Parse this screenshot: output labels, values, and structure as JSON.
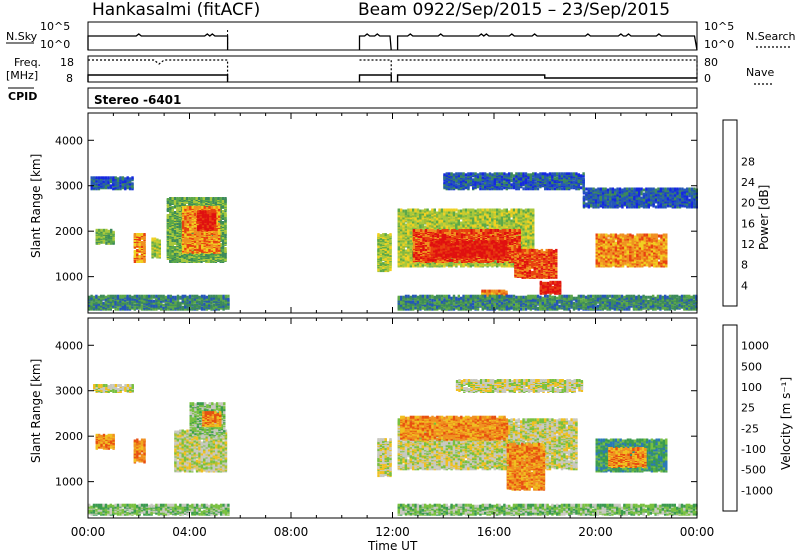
{
  "header": {
    "radar": "Hankasalmi (fitACF)",
    "beam": "Beam 09",
    "dates": "22/Sep/2015 – 23/Sep/2015"
  },
  "status": {
    "nsky_label": "N.Sky",
    "nsearch_label": "N.Search",
    "freq_label": "Freq.",
    "freq_unit": "[MHz]",
    "nave_label": "Nave",
    "cpid_label": "CPID",
    "cpid_value": "Stereo -6401",
    "left_top_tick": "10^5",
    "left_bottom_tick": "10^0",
    "right_top_tick": "10^5",
    "right_bottom_tick": "10^0",
    "freq_ticks": [
      "18",
      "8"
    ],
    "nave_ticks": [
      "80",
      "0"
    ],
    "data_gaps": [
      [
        5.5,
        10.7
      ],
      [
        11.95,
        12.2
      ]
    ],
    "freq_dip_hour": 2.8,
    "nave_step_hour": 18.0
  },
  "chart_data": [
    {
      "type": "heatmap",
      "panel": "power",
      "ylabel": "Slant Range [km]",
      "xlabel": "",
      "x_ticks": [
        "00:00",
        "04:00",
        "08:00",
        "12:00",
        "16:00",
        "20:00",
        "00:00"
      ],
      "x_range_hours": [
        0,
        24
      ],
      "y_ticks": [
        "1000",
        "2000",
        "3000",
        "4000"
      ],
      "y_range_km": [
        200,
        4600
      ],
      "colorbar": {
        "label": "Power [dB]",
        "ticks": [
          "4",
          "8",
          "12",
          "16",
          "20",
          "24",
          "28"
        ],
        "colors": [
          "#1528e0",
          "#2456b8",
          "#3c8a5a",
          "#5ca848",
          "#a8c83c",
          "#f0d020",
          "#f09020",
          "#e84010",
          "#e01010"
        ]
      },
      "regions": [
        {
          "t0": 0.1,
          "t1": 1.8,
          "r0": 2900,
          "r1": 3150,
          "level": 1
        },
        {
          "t0": 0.3,
          "t1": 1.0,
          "r0": 1700,
          "r1": 2000,
          "level": 3
        },
        {
          "t0": 1.8,
          "t1": 2.2,
          "r0": 1300,
          "r1": 1900,
          "level": 6
        },
        {
          "t0": 2.5,
          "t1": 2.8,
          "r0": 1400,
          "r1": 1800,
          "level": 4
        },
        {
          "t0": 3.1,
          "t1": 5.4,
          "r0": 1300,
          "r1": 2700,
          "level": 3
        },
        {
          "t0": 3.7,
          "t1": 5.2,
          "r0": 1500,
          "r1": 2500,
          "level": 6
        },
        {
          "t0": 4.3,
          "t1": 5.0,
          "r0": 2000,
          "r1": 2400,
          "level": 8
        },
        {
          "t0": 0.0,
          "t1": 5.5,
          "r0": 250,
          "r1": 550,
          "level": 2
        },
        {
          "t0": 11.4,
          "t1": 11.9,
          "r0": 1100,
          "r1": 1900,
          "level": 4
        },
        {
          "t0": 12.2,
          "t1": 17.5,
          "r0": 1200,
          "r1": 2450,
          "level": 4
        },
        {
          "t0": 12.8,
          "t1": 17.0,
          "r0": 1300,
          "r1": 2000,
          "level": 7
        },
        {
          "t0": 13.5,
          "t1": 16.5,
          "r0": 1400,
          "r1": 1750,
          "level": 8
        },
        {
          "t0": 16.8,
          "t1": 18.5,
          "r0": 950,
          "r1": 1550,
          "level": 7
        },
        {
          "t0": 17.8,
          "t1": 18.6,
          "r0": 600,
          "r1": 850,
          "level": 8
        },
        {
          "t0": 15.5,
          "t1": 16.5,
          "r0": 450,
          "r1": 650,
          "level": 6
        },
        {
          "t0": 14.0,
          "t1": 19.5,
          "r0": 2900,
          "r1": 3250,
          "level": 1
        },
        {
          "t0": 19.5,
          "t1": 24.0,
          "r0": 2500,
          "r1": 2900,
          "level": 1
        },
        {
          "t0": 20.0,
          "t1": 22.8,
          "r0": 1200,
          "r1": 1900,
          "level": 6
        },
        {
          "t0": 12.2,
          "t1": 24.0,
          "r0": 250,
          "r1": 550,
          "level": 2
        }
      ]
    },
    {
      "type": "heatmap",
      "panel": "velocity",
      "ylabel": "Slant Range [km]",
      "xlabel": "Time UT",
      "x_ticks": [
        "00:00",
        "04:00",
        "08:00",
        "12:00",
        "16:00",
        "20:00",
        "00:00"
      ],
      "x_range_hours": [
        0,
        24
      ],
      "y_ticks": [
        "1000",
        "2000",
        "3000",
        "4000"
      ],
      "y_range_km": [
        200,
        4600
      ],
      "colorbar": {
        "label": "Velocity [m s⁻¹]",
        "ticks": [
          "1000",
          "500",
          "100",
          "25",
          "-25",
          "-100",
          "-500",
          "-1000"
        ],
        "colors": [
          "#1c3cc8",
          "#2a78b8",
          "#3a9a50",
          "#78c040",
          "#c8c8c0",
          "#f0c020",
          "#f09020",
          "#e85010",
          "#e01010"
        ]
      },
      "regions": [
        {
          "t0": 0.2,
          "t1": 1.8,
          "r0": 2950,
          "r1": 3100,
          "level": 4
        },
        {
          "t0": 0.3,
          "t1": 1.0,
          "r0": 1700,
          "r1": 2000,
          "level": 6
        },
        {
          "t0": 1.8,
          "t1": 2.2,
          "r0": 1400,
          "r1": 1900,
          "level": 6
        },
        {
          "t0": 3.4,
          "t1": 5.4,
          "r0": 1200,
          "r1": 2100,
          "level": 4
        },
        {
          "t0": 4.0,
          "t1": 5.4,
          "r0": 2000,
          "r1": 2700,
          "level": 3
        },
        {
          "t0": 4.5,
          "t1": 5.2,
          "r0": 2200,
          "r1": 2500,
          "level": 6
        },
        {
          "t0": 0.0,
          "t1": 5.5,
          "r0": 250,
          "r1": 450,
          "level": 3
        },
        {
          "t0": 11.4,
          "t1": 11.9,
          "r0": 1100,
          "r1": 1900,
          "level": 4
        },
        {
          "t0": 12.2,
          "t1": 19.2,
          "r0": 1250,
          "r1": 2350,
          "level": 4
        },
        {
          "t0": 12.3,
          "t1": 16.5,
          "r0": 1900,
          "r1": 2400,
          "level": 6
        },
        {
          "t0": 16.5,
          "t1": 18.0,
          "r0": 800,
          "r1": 1800,
          "level": 6
        },
        {
          "t0": 14.5,
          "t1": 19.5,
          "r0": 2950,
          "r1": 3200,
          "level": 4
        },
        {
          "t0": 20.0,
          "t1": 22.8,
          "r0": 1200,
          "r1": 1900,
          "level": 2
        },
        {
          "t0": 20.5,
          "t1": 22.0,
          "r0": 1300,
          "r1": 1700,
          "level": 6
        },
        {
          "t0": 12.2,
          "t1": 24.0,
          "r0": 250,
          "r1": 450,
          "level": 3
        }
      ]
    }
  ]
}
